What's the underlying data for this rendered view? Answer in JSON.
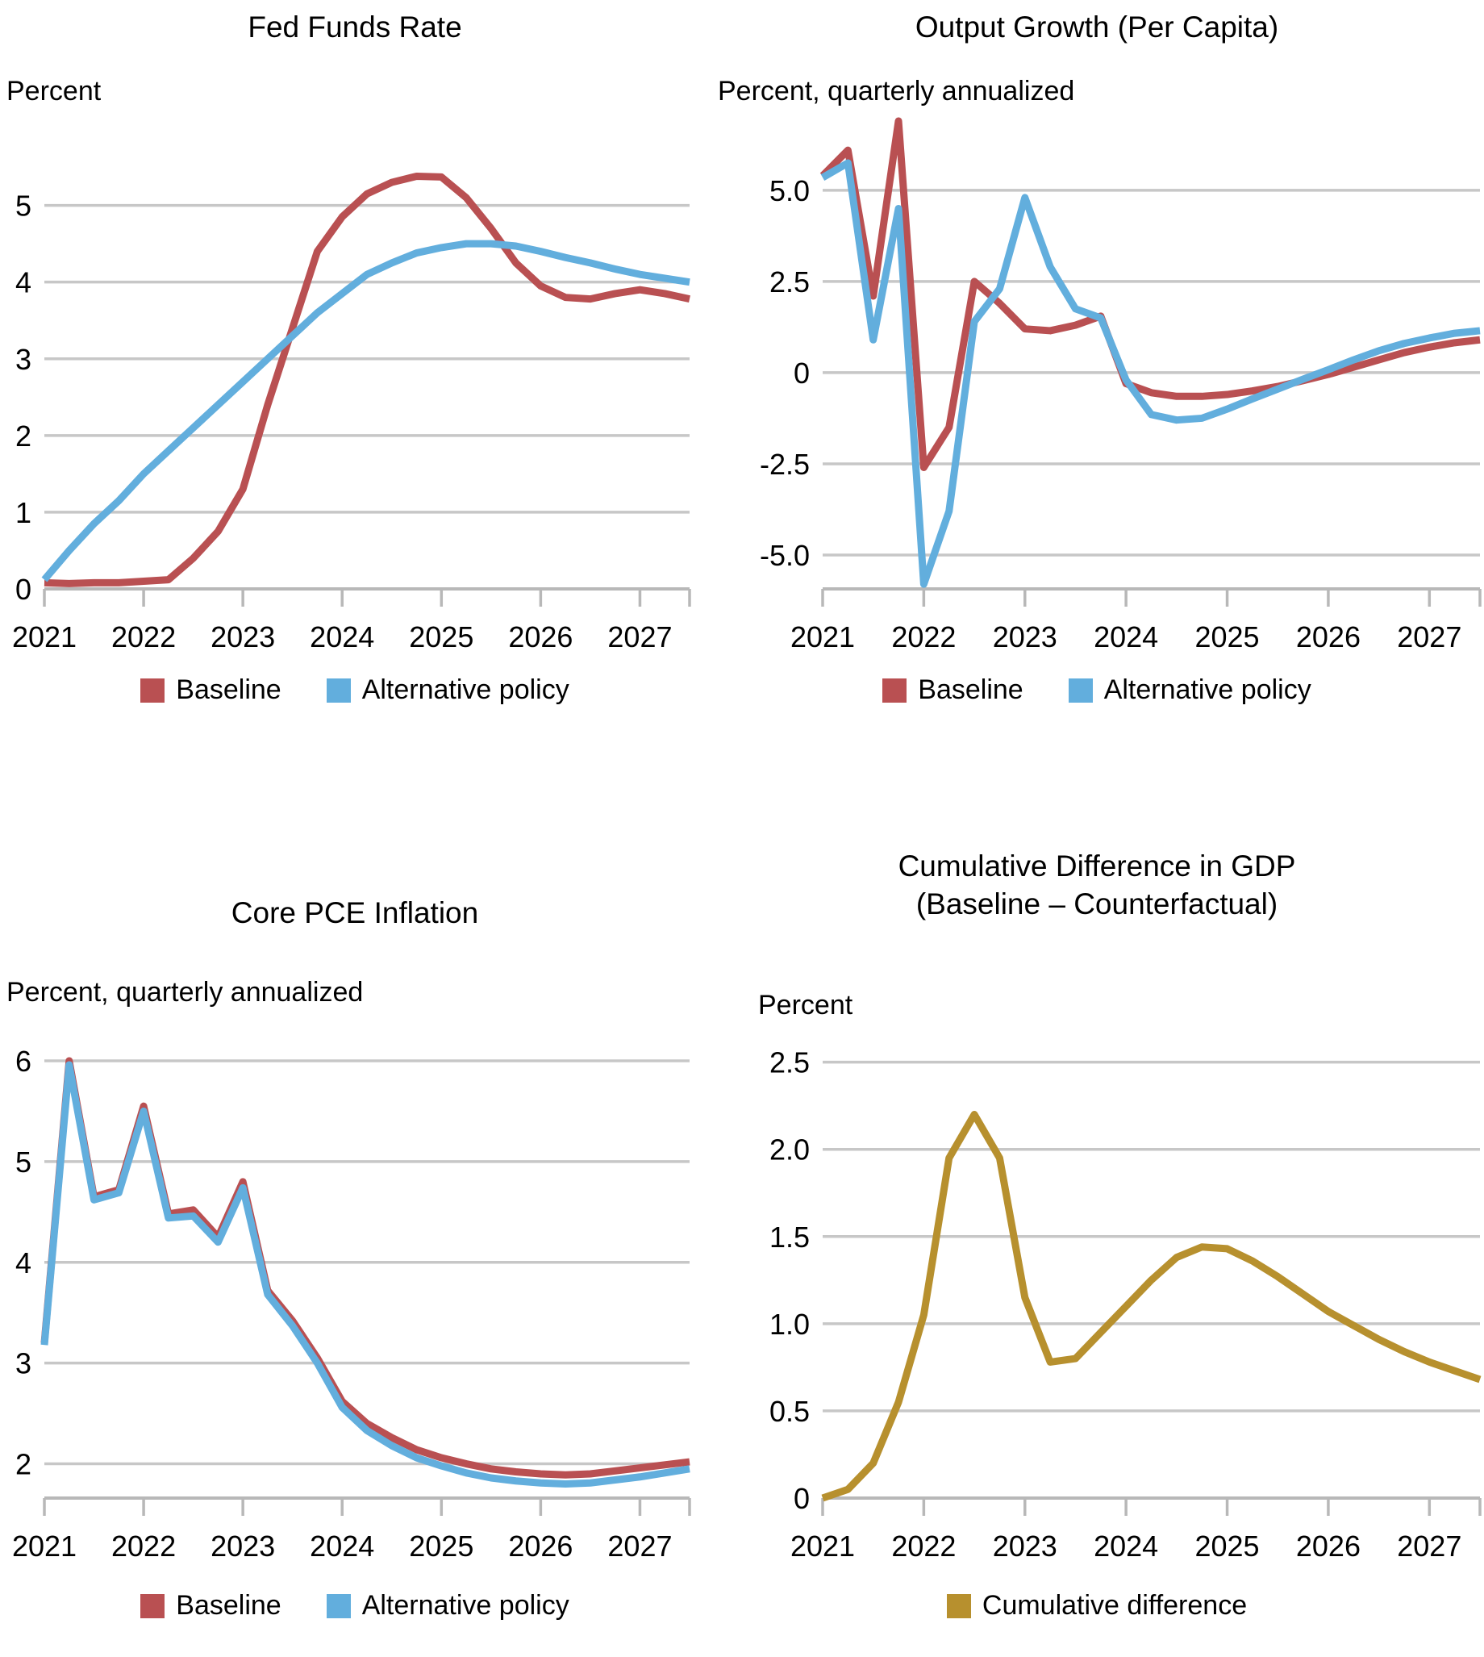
{
  "colors": {
    "baseline": "#b95052",
    "alternative": "#62aedd",
    "cumulative": "#b7902e",
    "gridline": "#c7c7c7",
    "axis": "#b8b8b8",
    "text": "#000000"
  },
  "chart_data": [
    {
      "type": "line",
      "title": "Fed Funds Rate",
      "ylabel": "Percent",
      "xlabel": "",
      "x_start": 2021.0,
      "x_step": 0.25,
      "x_domain": [
        2021.0,
        2027.5
      ],
      "xticklabels": [
        "2021",
        "2022",
        "2023",
        "2024",
        "2025",
        "2026",
        "2027"
      ],
      "ylim": [
        0,
        6.1
      ],
      "yticks": [
        {
          "v": 5,
          "label": "5"
        },
        {
          "v": 4,
          "label": "4"
        },
        {
          "v": 3,
          "label": "3"
        },
        {
          "v": 2,
          "label": "2"
        },
        {
          "v": 1,
          "label": "1"
        },
        {
          "v": 0,
          "label": "0"
        }
      ],
      "grid": true,
      "legend_position": "bottom",
      "series": [
        {
          "name": "Baseline",
          "color": "#b95052",
          "values": [
            0.08,
            0.07,
            0.08,
            0.08,
            0.1,
            0.12,
            0.4,
            0.75,
            1.3,
            2.4,
            3.4,
            4.4,
            4.85,
            5.15,
            5.3,
            5.38,
            5.37,
            5.1,
            4.7,
            4.25,
            3.95,
            3.8,
            3.78,
            3.85,
            3.9,
            3.85,
            3.78
          ]
        },
        {
          "name": "Alternative policy",
          "color": "#62aedd",
          "values": [
            0.12,
            0.5,
            0.85,
            1.15,
            1.5,
            1.8,
            2.1,
            2.4,
            2.7,
            3.0,
            3.3,
            3.6,
            3.85,
            4.1,
            4.25,
            4.38,
            4.45,
            4.5,
            4.5,
            4.47,
            4.4,
            4.32,
            4.25,
            4.17,
            4.1,
            4.05,
            4.0
          ]
        }
      ]
    },
    {
      "type": "line",
      "title": "Output Growth (Per Capita)",
      "ylabel": "Percent, quarterly annualized",
      "xlabel": "",
      "x_start": 2021.0,
      "x_step": 0.25,
      "x_domain": [
        2021.0,
        2027.5
      ],
      "xticklabels": [
        "2021",
        "2022",
        "2023",
        "2024",
        "2025",
        "2026",
        "2027"
      ],
      "ylim": [
        -5.93,
        6.9
      ],
      "yticks": [
        {
          "v": 5.0,
          "label": "5.0"
        },
        {
          "v": 2.5,
          "label": "2.5"
        },
        {
          "v": 0,
          "label": "0"
        },
        {
          "v": -2.5,
          "label": "-2.5"
        },
        {
          "v": -5.0,
          "label": "-5.0"
        }
      ],
      "grid": true,
      "legend_position": "bottom",
      "series": [
        {
          "name": "Baseline",
          "color": "#b95052",
          "values": [
            5.4,
            6.1,
            2.1,
            6.9,
            -2.6,
            -1.5,
            2.5,
            1.9,
            1.2,
            1.15,
            1.3,
            1.55,
            -0.3,
            -0.55,
            -0.65,
            -0.65,
            -0.6,
            -0.5,
            -0.38,
            -0.22,
            -0.05,
            0.15,
            0.35,
            0.55,
            0.7,
            0.82,
            0.9
          ]
        },
        {
          "name": "Alternative policy",
          "color": "#62aedd",
          "values": [
            5.35,
            5.75,
            0.9,
            4.5,
            -5.8,
            -3.8,
            1.4,
            2.3,
            4.8,
            2.9,
            1.75,
            1.5,
            -0.2,
            -1.15,
            -1.3,
            -1.25,
            -1.0,
            -0.72,
            -0.45,
            -0.18,
            0.08,
            0.35,
            0.6,
            0.8,
            0.95,
            1.08,
            1.15
          ]
        }
      ]
    },
    {
      "type": "line",
      "title": "Core PCE Inflation",
      "ylabel": "Percent, quarterly annualized",
      "xlabel": "",
      "x_start": 2021.0,
      "x_step": 0.25,
      "x_domain": [
        2021.0,
        2027.5
      ],
      "xticklabels": [
        "2021",
        "2022",
        "2023",
        "2024",
        "2025",
        "2026",
        "2027"
      ],
      "ylim": [
        1.66,
        6.12
      ],
      "yticks": [
        {
          "v": 6,
          "label": "6"
        },
        {
          "v": 5,
          "label": "5"
        },
        {
          "v": 4,
          "label": "4"
        },
        {
          "v": 3,
          "label": "3"
        },
        {
          "v": 2,
          "label": "2"
        }
      ],
      "grid": true,
      "legend_position": "bottom",
      "series": [
        {
          "name": "Baseline",
          "color": "#b95052",
          "values": [
            3.2,
            6.0,
            4.65,
            4.72,
            5.55,
            4.48,
            4.52,
            4.25,
            4.8,
            3.72,
            3.42,
            3.05,
            2.62,
            2.4,
            2.26,
            2.14,
            2.06,
            2.0,
            1.95,
            1.92,
            1.9,
            1.89,
            1.9,
            1.93,
            1.96,
            1.99,
            2.02
          ]
        },
        {
          "name": "Alternative policy",
          "color": "#62aedd",
          "values": [
            3.18,
            5.96,
            4.62,
            4.69,
            5.5,
            4.44,
            4.46,
            4.2,
            4.74,
            3.68,
            3.37,
            3.0,
            2.56,
            2.33,
            2.18,
            2.06,
            1.98,
            1.91,
            1.86,
            1.83,
            1.81,
            1.8,
            1.81,
            1.84,
            1.87,
            1.91,
            1.95
          ]
        }
      ]
    },
    {
      "type": "line",
      "title": "Cumulative Difference in GDP\n(Baseline – Counterfactual)",
      "ylabel": "Percent",
      "xlabel": "",
      "x_start": 2021.0,
      "x_step": 0.25,
      "x_domain": [
        2021.0,
        2027.5
      ],
      "xticklabels": [
        "2021",
        "2022",
        "2023",
        "2024",
        "2025",
        "2026",
        "2027"
      ],
      "ylim": [
        0,
        2.6
      ],
      "yticks": [
        {
          "v": 2.5,
          "label": "2.5"
        },
        {
          "v": 2.0,
          "label": "2.0"
        },
        {
          "v": 1.5,
          "label": "1.5"
        },
        {
          "v": 1.0,
          "label": "1.0"
        },
        {
          "v": 0.5,
          "label": "0.5"
        },
        {
          "v": 0,
          "label": "0"
        }
      ],
      "grid": true,
      "legend_position": "bottom",
      "series": [
        {
          "name": "Cumulative difference",
          "color": "#b7902e",
          "values": [
            0.0,
            0.05,
            0.2,
            0.55,
            1.05,
            1.95,
            2.2,
            1.95,
            1.15,
            0.78,
            0.8,
            0.95,
            1.1,
            1.25,
            1.38,
            1.44,
            1.43,
            1.36,
            1.27,
            1.17,
            1.07,
            0.99,
            0.91,
            0.84,
            0.78,
            0.73,
            0.68
          ]
        }
      ]
    }
  ]
}
